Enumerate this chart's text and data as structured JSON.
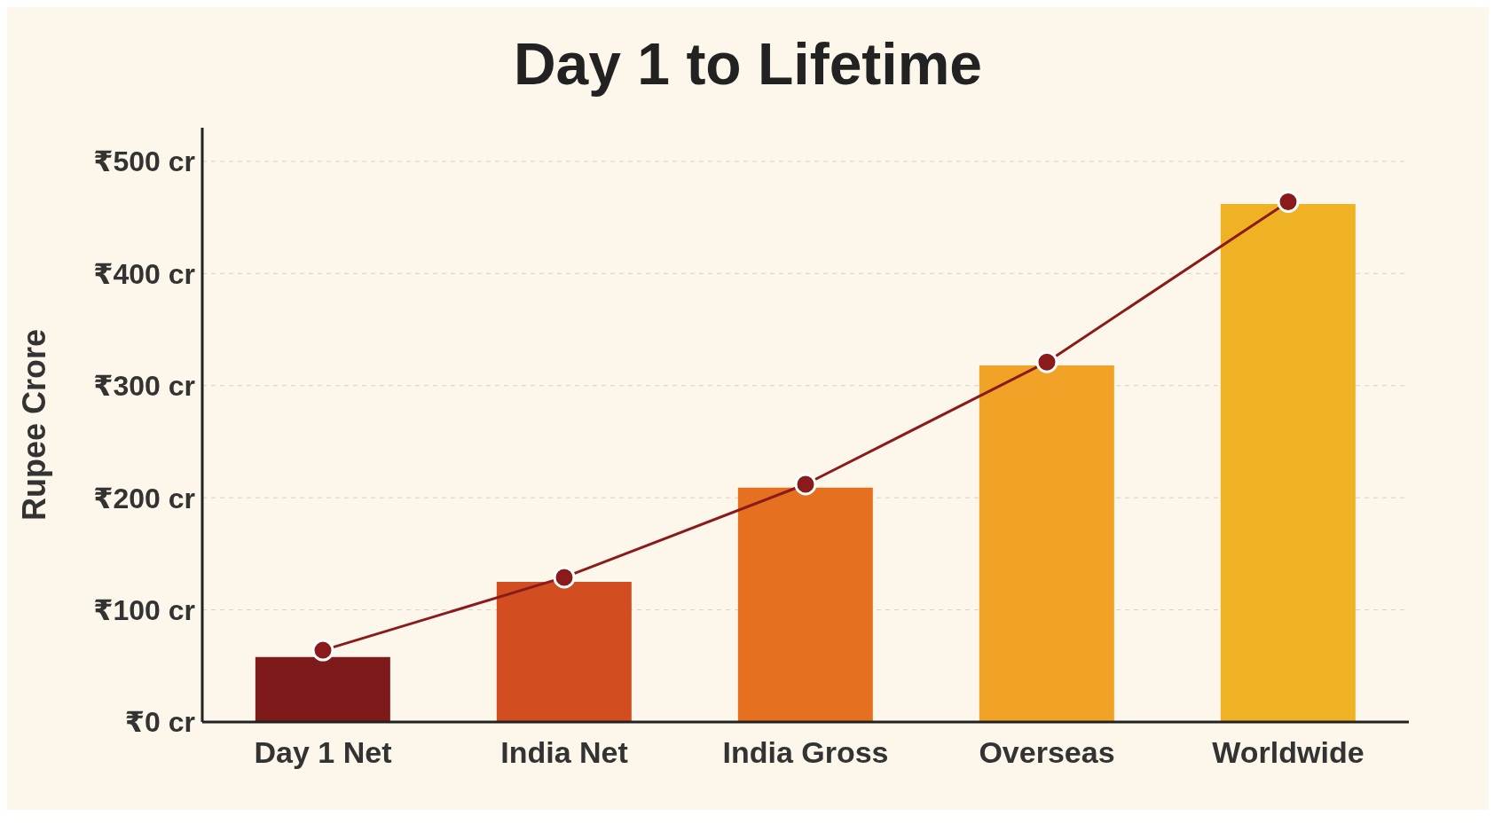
{
  "chart_data": {
    "type": "bar",
    "title": "Day 1 to Lifetime",
    "ylabel": "Rupee Crore",
    "categories": [
      "Day 1 Net",
      "India Net",
      "India Gross",
      "Overseas",
      "Worldwide"
    ],
    "series": [
      {
        "colors": [
          "#7f1a1a",
          "#d24e20",
          "#e5701f",
          "#f0a326",
          "#f0b225"
        ],
        "values": [
          58,
          125,
          209,
          318,
          462
        ]
      },
      {
        "type": "line",
        "color": "#8b1a1a",
        "values": [
          64,
          129,
          212,
          321,
          464
        ],
        "marker": "circle"
      }
    ],
    "ylim": [
      0,
      530
    ],
    "yticks": [
      {
        "value": 0,
        "label": "₹0 cr"
      },
      {
        "value": 100,
        "label": "₹100 cr"
      },
      {
        "value": 200,
        "label": "₹200 cr"
      },
      {
        "value": 300,
        "label": "₹300 cr"
      },
      {
        "value": 400,
        "label": "₹400 cr"
      },
      {
        "value": 500,
        "label": "₹500 cr"
      }
    ],
    "grid": "y"
  }
}
